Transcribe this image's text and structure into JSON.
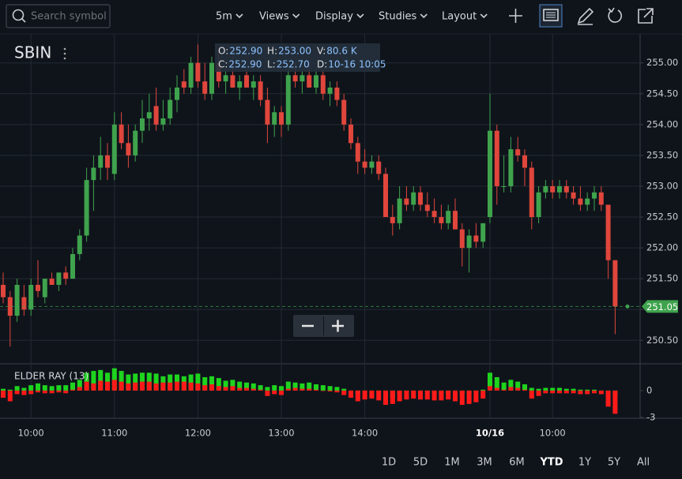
{
  "toolbar": {
    "search_placeholder": "Search symbol",
    "menus": [
      "5m",
      "Views",
      "Display",
      "Studies",
      "Layout"
    ]
  },
  "symbol": "SBIN",
  "ohlc_tooltip": [
    {
      "label": "O:",
      "value": "252.90"
    },
    {
      "label": "H:",
      "value": "253.00"
    },
    {
      "label": "V:",
      "value": "80.6 K"
    },
    {
      "label": "C:",
      "value": "252.90"
    },
    {
      "label": "L:",
      "value": "252.70"
    },
    {
      "label": "D:",
      "value": "10-16 10:05"
    }
  ],
  "ranges": [
    "1D",
    "5D",
    "1M",
    "3M",
    "6M",
    "YTD",
    "1Y",
    "5Y",
    "All"
  ],
  "active_range_index": 5,
  "chart_data": [
    {
      "type": "candlestick",
      "up_color": "#3fa34d",
      "down_color": "#e0463c",
      "ylim": [
        250.12,
        255.47
      ],
      "yticks": [
        {
          "value": 250.5,
          "label": "250.50"
        },
        {
          "value": 251,
          "label": "251.00"
        },
        {
          "value": 251.5,
          "label": "251.50"
        },
        {
          "value": 252,
          "label": "252.00"
        },
        {
          "value": 252.5,
          "label": "252.50"
        },
        {
          "value": 253,
          "label": "253.00"
        },
        {
          "value": 253.5,
          "label": "253.50"
        },
        {
          "value": 254,
          "label": "254.00"
        },
        {
          "value": 254.5,
          "label": "254.50"
        },
        {
          "value": 255,
          "label": "255.00"
        }
      ],
      "xticks": [
        {
          "value": 4,
          "label": "10:00"
        },
        {
          "value": 16,
          "label": "11:00"
        },
        {
          "value": 28,
          "label": "12:00"
        },
        {
          "value": 40,
          "label": "13:00"
        },
        {
          "value": 52,
          "label": "14:00"
        },
        {
          "value": 70,
          "label": "10/16"
        },
        {
          "value": 79,
          "label": "10:00"
        }
      ],
      "grid": true,
      "last_price": 251.05,
      "candles": [
        [
          251.4,
          251.6,
          251.1,
          251.2
        ],
        [
          251.2,
          251.3,
          250.4,
          250.9
        ],
        [
          250.9,
          251.5,
          250.8,
          251.4
        ],
        [
          251.2,
          251.4,
          250.9,
          251.0
        ],
        [
          251.0,
          251.5,
          250.9,
          251.4
        ],
        [
          251.4,
          251.8,
          251.2,
          251.3
        ],
        [
          251.2,
          251.5,
          251.1,
          251.5
        ],
        [
          251.5,
          251.6,
          251.4,
          251.4
        ],
        [
          251.4,
          251.6,
          251.3,
          251.6
        ],
        [
          251.6,
          251.7,
          251.4,
          251.5
        ],
        [
          251.5,
          252.0,
          251.5,
          251.9
        ],
        [
          251.9,
          252.3,
          251.8,
          252.2
        ],
        [
          252.2,
          253.3,
          252.1,
          253.1
        ],
        [
          253.1,
          253.5,
          252.6,
          253.3
        ],
        [
          253.3,
          253.8,
          253.1,
          253.5
        ],
        [
          253.5,
          253.7,
          253.1,
          253.3
        ],
        [
          253.2,
          254.2,
          253.1,
          254.0
        ],
        [
          254.0,
          254.2,
          253.6,
          253.7
        ],
        [
          253.7,
          254.0,
          253.3,
          253.5
        ],
        [
          253.5,
          254.0,
          253.4,
          253.9
        ],
        [
          253.9,
          254.4,
          253.7,
          254.1
        ],
        [
          254.1,
          254.5,
          253.9,
          254.2
        ],
        [
          254.3,
          254.6,
          253.9,
          254.0
        ],
        [
          254.0,
          254.4,
          253.9,
          254.1
        ],
        [
          254.1,
          254.6,
          254.0,
          254.4
        ],
        [
          254.4,
          254.8,
          254.2,
          254.6
        ],
        [
          254.7,
          254.9,
          254.5,
          254.6
        ],
        [
          254.6,
          255.1,
          254.5,
          255.0
        ],
        [
          255.0,
          255.3,
          254.6,
          254.7
        ],
        [
          254.7,
          255.0,
          254.4,
          254.5
        ],
        [
          254.5,
          255.1,
          254.4,
          255.0
        ],
        [
          255.0,
          255.2,
          254.6,
          254.7
        ],
        [
          254.7,
          254.9,
          254.5,
          254.8
        ],
        [
          254.8,
          255.1,
          254.6,
          254.6
        ],
        [
          254.6,
          254.8,
          254.4,
          254.7
        ],
        [
          254.8,
          254.9,
          254.6,
          254.6
        ],
        [
          254.6,
          254.8,
          254.4,
          254.7
        ],
        [
          254.7,
          254.8,
          254.3,
          254.4
        ],
        [
          254.4,
          254.6,
          253.7,
          254.0
        ],
        [
          254.0,
          254.3,
          253.8,
          254.2
        ],
        [
          254.2,
          254.3,
          253.8,
          254.0
        ],
        [
          254.0,
          255.0,
          253.9,
          254.8
        ],
        [
          254.8,
          255.0,
          254.6,
          254.7
        ],
        [
          254.7,
          254.9,
          254.5,
          254.8
        ],
        [
          254.8,
          255.0,
          254.6,
          254.6
        ],
        [
          254.6,
          254.9,
          254.5,
          254.8
        ],
        [
          254.8,
          254.9,
          254.4,
          254.5
        ],
        [
          254.5,
          254.7,
          254.3,
          254.6
        ],
        [
          254.6,
          254.7,
          254.3,
          254.4
        ],
        [
          254.4,
          254.5,
          253.9,
          254.0
        ],
        [
          254.0,
          254.1,
          253.6,
          253.7
        ],
        [
          253.7,
          253.8,
          253.2,
          253.4
        ],
        [
          253.4,
          253.6,
          253.2,
          253.3
        ],
        [
          253.3,
          253.5,
          253.2,
          253.4
        ],
        [
          253.4,
          253.5,
          253.1,
          253.2
        ],
        [
          253.2,
          253.3,
          252.5,
          252.5
        ],
        [
          252.5,
          252.7,
          252.2,
          252.4
        ],
        [
          252.4,
          253.0,
          252.3,
          252.8
        ],
        [
          252.8,
          253.0,
          252.6,
          252.7
        ],
        [
          252.7,
          253.0,
          252.6,
          252.9
        ],
        [
          252.9,
          253.0,
          252.6,
          252.7
        ],
        [
          252.7,
          252.9,
          252.5,
          252.6
        ],
        [
          252.6,
          252.8,
          252.4,
          252.5
        ],
        [
          252.5,
          252.7,
          252.3,
          252.4
        ],
        [
          252.4,
          252.7,
          252.3,
          252.6
        ],
        [
          252.6,
          252.8,
          252.3,
          252.3
        ],
        [
          252.3,
          252.4,
          251.7,
          252.0
        ],
        [
          252.0,
          252.3,
          251.6,
          252.2
        ],
        [
          252.2,
          252.4,
          252.0,
          252.1
        ],
        [
          252.1,
          252.4,
          252.0,
          252.4
        ],
        [
          252.5,
          254.5,
          252.4,
          253.9
        ],
        [
          253.9,
          254.0,
          252.7,
          253.0
        ],
        [
          253.0,
          253.5,
          252.9,
          253.0
        ],
        [
          253.0,
          253.8,
          252.9,
          253.6
        ],
        [
          253.6,
          253.8,
          253.4,
          253.5
        ],
        [
          253.5,
          253.6,
          253.0,
          253.3
        ],
        [
          253.3,
          253.4,
          252.3,
          252.5
        ],
        [
          252.5,
          253.0,
          252.4,
          252.9
        ],
        [
          252.9,
          253.1,
          252.8,
          253.0
        ],
        [
          253.0,
          253.1,
          252.8,
          252.9
        ],
        [
          252.9,
          253.1,
          252.8,
          253.0
        ],
        [
          253.0,
          253.1,
          252.8,
          252.9
        ],
        [
          252.9,
          253.0,
          252.7,
          252.8
        ],
        [
          252.8,
          253.0,
          252.6,
          252.7
        ],
        [
          252.7,
          252.9,
          252.6,
          252.8
        ],
        [
          252.8,
          253.0,
          252.6,
          252.9
        ],
        [
          252.9,
          253.0,
          252.6,
          252.7
        ],
        [
          252.7,
          252.7,
          251.5,
          251.8
        ],
        [
          251.8,
          251.8,
          250.6,
          251.05
        ]
      ]
    },
    {
      "type": "bar",
      "title": "ELDER RAY (13)",
      "ylim": [
        -3.1,
        3
      ],
      "yticks": [
        0,
        -3
      ],
      "series": [
        {
          "color": "#1ed41e",
          "values": [
            0.2,
            0.1,
            0.5,
            0.3,
            0.6,
            0.8,
            0.6,
            0.5,
            0.6,
            0.6,
            0.9,
            1.2,
            2.0,
            2.2,
            2.3,
            2.0,
            2.5,
            2.2,
            1.8,
            1.9,
            2.0,
            2.0,
            1.9,
            1.6,
            1.8,
            1.8,
            1.6,
            1.8,
            1.9,
            1.5,
            1.6,
            1.4,
            1.1,
            1.2,
            1.0,
            0.9,
            0.8,
            0.6,
            0.4,
            0.6,
            0.5,
            1.0,
            0.9,
            0.8,
            0.9,
            0.7,
            0.6,
            0.5,
            0.4,
            0.2,
            0.0,
            -0.3,
            -0.2,
            0,
            -0.1,
            -0.6,
            -0.8,
            -0.3,
            -0.2,
            -0.1,
            -0.1,
            -0.2,
            -0.3,
            -0.4,
            -0.3,
            -0.2,
            -0.4,
            -0.3,
            -0.2,
            0.1,
            2.0,
            1.5,
            0.9,
            1.2,
            1.0,
            0.7,
            0.3,
            0.2,
            0.3,
            0.3,
            0.3,
            0.2,
            0.2,
            0.1,
            0.1,
            0.1,
            0.0,
            -0.4,
            -0.6
          ]
        },
        {
          "color": "#ff1a1a",
          "values": [
            -0.8,
            -1.2,
            -0.4,
            -0.5,
            -0.4,
            -0.2,
            -0.3,
            -0.3,
            -0.2,
            -0.3,
            0.1,
            0.4,
            1.0,
            0.8,
            1.1,
            1.0,
            1.2,
            1.0,
            0.8,
            0.9,
            1.0,
            1.0,
            0.8,
            0.9,
            0.9,
            1.0,
            1.0,
            0.9,
            0.8,
            0.6,
            0.7,
            0.5,
            0.4,
            0.5,
            0.3,
            0.3,
            0.2,
            0.1,
            -0.6,
            -0.4,
            -0.5,
            0.2,
            0.3,
            0.2,
            0.2,
            0.1,
            0.0,
            -0.1,
            -0.2,
            -0.5,
            -0.8,
            -1.2,
            -1.0,
            -0.9,
            -1.1,
            -1.6,
            -1.5,
            -1.2,
            -1.0,
            -0.9,
            -1.0,
            -1.0,
            -1.1,
            -1.1,
            -1.0,
            -1.2,
            -1.6,
            -1.5,
            -1.3,
            -0.9,
            0.5,
            0.3,
            0.1,
            0.4,
            0.3,
            0.1,
            -0.9,
            -0.6,
            -0.3,
            -0.3,
            -0.3,
            -0.3,
            -0.3,
            -0.4,
            -0.4,
            -0.3,
            -0.4,
            -1.8,
            -2.6
          ]
        }
      ]
    }
  ]
}
